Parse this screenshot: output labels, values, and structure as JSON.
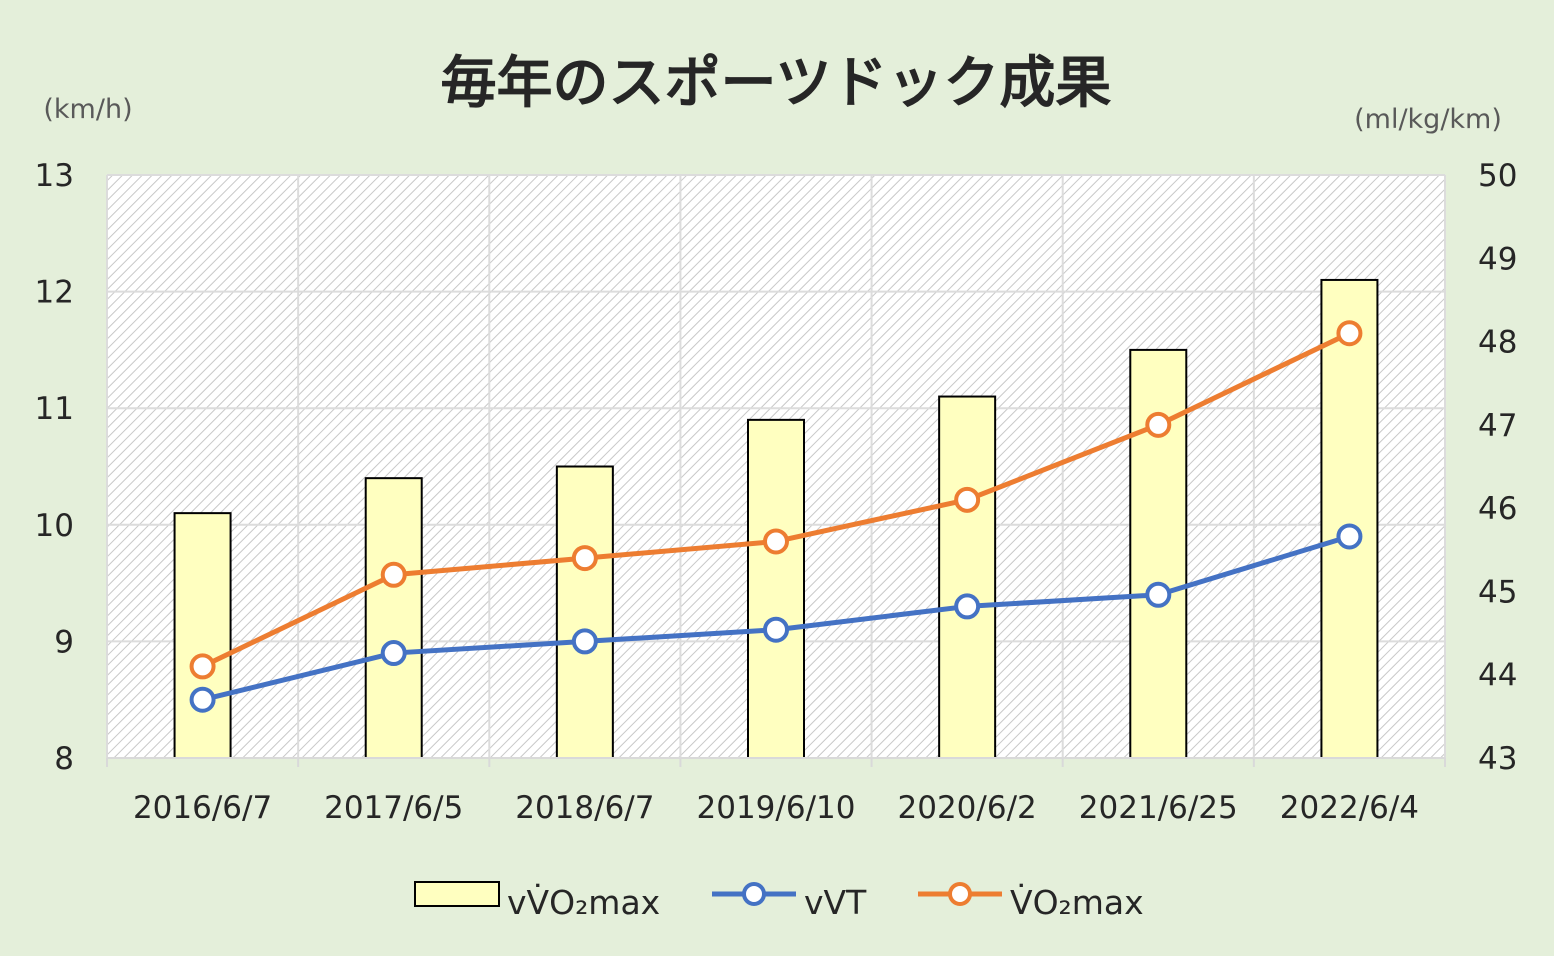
{
  "chart_data": {
    "type": "bar+line",
    "title": "毎年のスポーツドック成果",
    "categories": [
      "2016/6/7",
      "2017/6/5",
      "2018/6/7",
      "2019/6/10",
      "2020/6/2",
      "2021/6/25",
      "2022/6/4"
    ],
    "left_axis": {
      "unit": "(km/h)",
      "ylim": [
        8,
        13
      ],
      "ticks": [
        "8",
        "9",
        "10",
        "11",
        "12",
        "13"
      ]
    },
    "right_axis": {
      "unit": "(ml/kg/km)",
      "ylim": [
        43,
        50
      ],
      "ticks": [
        "43",
        "44",
        "45",
        "46",
        "47",
        "48",
        "49",
        "50"
      ]
    },
    "series": [
      {
        "name": "vV̇O₂max",
        "kind": "bar",
        "axis": "left",
        "color": "#ffffc0",
        "values": [
          10.1,
          10.4,
          10.5,
          10.9,
          11.1,
          11.5,
          12.1
        ]
      },
      {
        "name": "vVT",
        "kind": "line",
        "axis": "left",
        "color": "#4472c4",
        "values": [
          8.5,
          8.9,
          9.0,
          9.1,
          9.3,
          9.4,
          9.9
        ]
      },
      {
        "name": "V̇O₂max",
        "kind": "line",
        "axis": "right",
        "color": "#ed7d31",
        "values": [
          44.1,
          45.2,
          45.4,
          45.6,
          46.1,
          47.0,
          48.1
        ]
      }
    ],
    "grid": true,
    "legend": "bottom",
    "background": "#e4efda",
    "plot_fill": "diagonal-hatch"
  }
}
